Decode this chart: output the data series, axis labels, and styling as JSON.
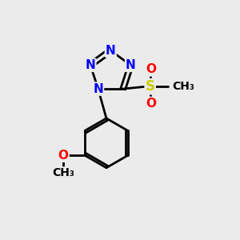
{
  "background_color": "#ebebeb",
  "atom_colors": {
    "N": "#0000ff",
    "S": "#cccc00",
    "O": "#ff0000",
    "C": "#000000"
  },
  "bond_color": "#000000",
  "bond_width": 2.0,
  "figsize": [
    3.0,
    3.0
  ],
  "dpi": 100
}
